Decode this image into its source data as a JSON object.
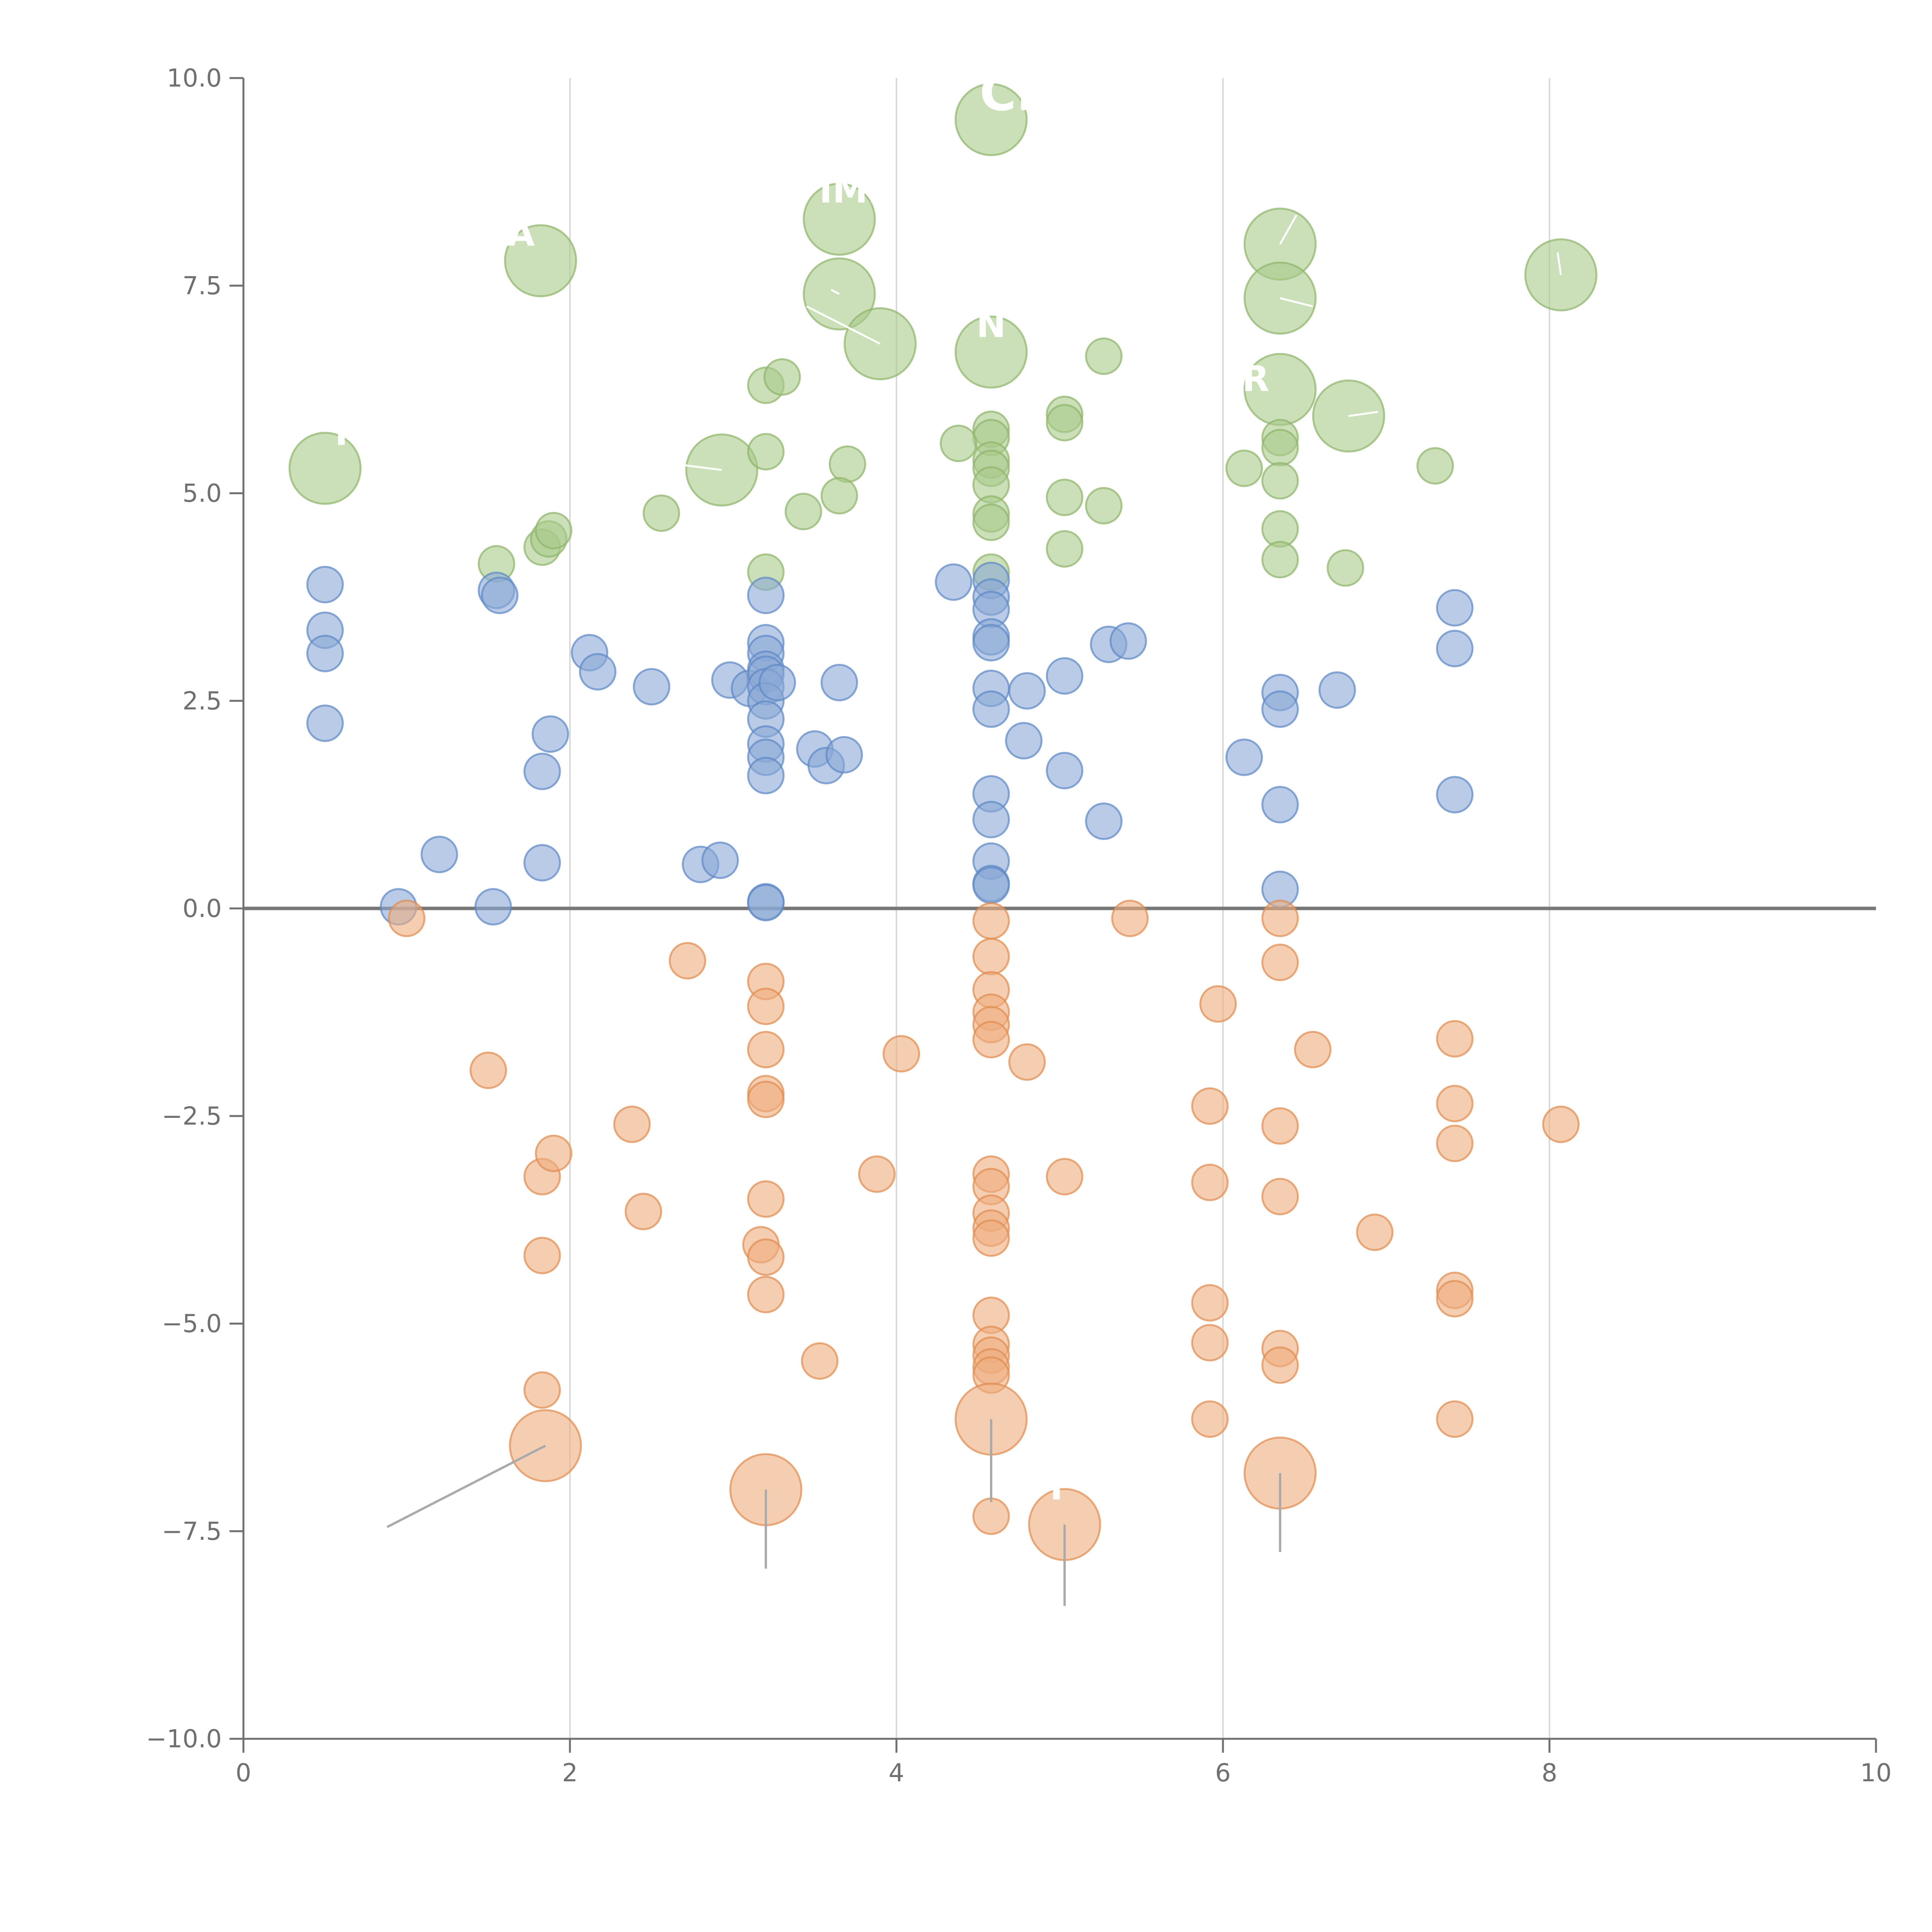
{
  "chart_data": {
    "type": "scatter",
    "title": "",
    "xlabel": "",
    "ylabel": "",
    "xlim": [
      0,
      10
    ],
    "ylim": [
      -10,
      10
    ],
    "x_ticks": [
      0,
      2,
      4,
      6,
      8,
      10
    ],
    "x_tick_labels": [
      "0",
      "2",
      "4",
      "6",
      "8",
      "10"
    ],
    "y_ticks": [
      -10,
      -7.5,
      -5,
      -2.5,
      0,
      2.5,
      5,
      7.5,
      10
    ],
    "y_tick_labels": [
      "−10.0",
      "−7.5",
      "−5.0",
      "−2.5",
      "0.0",
      "2.5",
      "5.0",
      "7.5",
      "10.0"
    ],
    "vertical_gridlines_at": [
      2,
      4,
      6,
      8
    ],
    "baseline_y": 0,
    "colors": {
      "green": "#a9c98a",
      "green_stroke": "#8fb46a",
      "blue": "#8ba8d6",
      "blue_stroke": "#5d87c4",
      "orange": "#eeae7e",
      "orange_stroke": "#df8c4e",
      "axis": "#707070",
      "grid": "#d9d9d9",
      "baseline": "#777777",
      "leader": "#aaaaaa"
    },
    "series": [
      {
        "name": "green",
        "points": [
          [
            0.5,
            5.3,
            2
          ],
          [
            1.82,
            7.8,
            2
          ],
          [
            3.65,
            8.3,
            2
          ],
          [
            4.58,
            9.5,
            2
          ],
          [
            3.65,
            7.4,
            2
          ],
          [
            3.9,
            6.8,
            2
          ],
          [
            4.58,
            6.7,
            2
          ],
          [
            2.93,
            5.28,
            2
          ],
          [
            6.35,
            8.0,
            2
          ],
          [
            6.35,
            7.35,
            2
          ],
          [
            6.35,
            6.25,
            2
          ],
          [
            6.77,
            5.93,
            2
          ],
          [
            8.07,
            7.63,
            2
          ],
          [
            3.2,
            6.3,
            1
          ],
          [
            3.3,
            6.4,
            1
          ],
          [
            5.27,
            6.65,
            1
          ],
          [
            5.03,
            5.95,
            1
          ],
          [
            5.03,
            5.85,
            1
          ],
          [
            4.58,
            5.77,
            1
          ],
          [
            4.58,
            5.67,
            1
          ],
          [
            4.38,
            5.6,
            1
          ],
          [
            4.58,
            5.4,
            1
          ],
          [
            4.58,
            5.3,
            1
          ],
          [
            4.58,
            5.1,
            1
          ],
          [
            4.58,
            4.75,
            1
          ],
          [
            4.58,
            4.65,
            1
          ],
          [
            4.58,
            4.05,
            1
          ],
          [
            3.2,
            5.5,
            1
          ],
          [
            3.7,
            5.35,
            1
          ],
          [
            3.65,
            4.97,
            1
          ],
          [
            3.43,
            4.78,
            1
          ],
          [
            2.56,
            4.76,
            1
          ],
          [
            1.55,
            4.15,
            1
          ],
          [
            1.83,
            4.35,
            1
          ],
          [
            1.87,
            4.45,
            1
          ],
          [
            1.9,
            4.55,
            1
          ],
          [
            3.2,
            4.05,
            1
          ],
          [
            5.03,
            4.95,
            1
          ],
          [
            5.27,
            4.85,
            1
          ],
          [
            5.03,
            4.33,
            1
          ],
          [
            6.13,
            5.3,
            1
          ],
          [
            6.35,
            5.67,
            1
          ],
          [
            6.35,
            5.55,
            1
          ],
          [
            6.35,
            5.15,
            1
          ],
          [
            6.35,
            4.57,
            1
          ],
          [
            6.35,
            4.2,
            1
          ],
          [
            6.75,
            4.1,
            1
          ],
          [
            7.3,
            5.33,
            1
          ]
        ]
      },
      {
        "name": "blue",
        "points": [
          [
            0.5,
            3.9,
            1
          ],
          [
            0.5,
            3.35,
            1
          ],
          [
            0.5,
            3.07,
            1
          ],
          [
            0.5,
            2.23,
            1
          ],
          [
            1.55,
            3.83,
            1
          ],
          [
            1.57,
            3.77,
            1
          ],
          [
            2.12,
            3.08,
            1
          ],
          [
            2.17,
            2.85,
            1
          ],
          [
            2.5,
            2.67,
            1
          ],
          [
            1.88,
            2.1,
            1
          ],
          [
            1.83,
            1.65,
            1
          ],
          [
            1.2,
            0.65,
            1
          ],
          [
            1.83,
            0.55,
            1
          ],
          [
            0.95,
            0.02,
            1
          ],
          [
            1.53,
            0.02,
            1
          ],
          [
            2.8,
            0.53,
            1
          ],
          [
            2.92,
            0.58,
            1
          ],
          [
            2.98,
            2.75,
            1
          ],
          [
            3.1,
            2.65,
            1
          ],
          [
            3.2,
            3.77,
            1
          ],
          [
            3.2,
            3.2,
            1
          ],
          [
            3.2,
            3.07,
            1
          ],
          [
            3.2,
            2.88,
            1
          ],
          [
            3.2,
            2.82,
            1
          ],
          [
            3.2,
            2.67,
            1
          ],
          [
            3.2,
            2.5,
            1
          ],
          [
            3.2,
            2.28,
            1
          ],
          [
            3.2,
            1.98,
            1
          ],
          [
            3.2,
            1.82,
            1
          ],
          [
            3.2,
            1.6,
            1
          ],
          [
            3.27,
            2.72,
            1
          ],
          [
            3.2,
            0.08,
            1
          ],
          [
            3.2,
            0.07,
            1
          ],
          [
            3.5,
            1.92,
            1
          ],
          [
            3.57,
            1.72,
            1
          ],
          [
            3.68,
            1.85,
            1
          ],
          [
            3.65,
            2.72,
            1
          ],
          [
            4.35,
            3.93,
            1
          ],
          [
            4.58,
            3.95,
            1
          ],
          [
            4.58,
            3.75,
            1
          ],
          [
            4.58,
            3.6,
            1
          ],
          [
            4.58,
            3.27,
            1
          ],
          [
            4.58,
            3.2,
            1
          ],
          [
            4.58,
            2.65,
            1
          ],
          [
            4.58,
            2.4,
            1
          ],
          [
            4.8,
            2.62,
            1
          ],
          [
            4.78,
            2.02,
            1
          ],
          [
            4.58,
            1.38,
            1
          ],
          [
            4.58,
            1.07,
            1
          ],
          [
            4.58,
            0.57,
            1
          ],
          [
            4.58,
            0.3,
            1
          ],
          [
            4.58,
            0.28,
            1
          ],
          [
            5.03,
            2.8,
            1
          ],
          [
            5.03,
            1.66,
            1
          ],
          [
            5.27,
            1.05,
            1
          ],
          [
            5.3,
            3.18,
            1
          ],
          [
            5.42,
            3.22,
            1
          ],
          [
            6.13,
            1.82,
            1
          ],
          [
            6.35,
            2.6,
            1
          ],
          [
            6.35,
            2.4,
            1
          ],
          [
            6.35,
            1.25,
            1
          ],
          [
            6.35,
            0.23,
            1
          ],
          [
            6.7,
            2.63,
            1
          ],
          [
            7.42,
            3.62,
            1
          ],
          [
            7.42,
            3.13,
            1
          ],
          [
            7.42,
            1.37,
            1
          ]
        ]
      },
      {
        "name": "orange",
        "points": [
          [
            1.0,
            -0.12,
            1
          ],
          [
            1.5,
            -1.95,
            1
          ],
          [
            1.83,
            -3.23,
            1
          ],
          [
            1.9,
            -2.95,
            1
          ],
          [
            1.83,
            -4.18,
            1
          ],
          [
            1.83,
            -5.8,
            1
          ],
          [
            2.38,
            -2.6,
            1
          ],
          [
            2.45,
            -3.65,
            1
          ],
          [
            2.72,
            -0.63,
            1
          ],
          [
            3.2,
            -0.88,
            1
          ],
          [
            3.2,
            -1.18,
            1
          ],
          [
            3.2,
            -1.7,
            1
          ],
          [
            3.2,
            -2.23,
            1
          ],
          [
            3.2,
            -2.3,
            1
          ],
          [
            3.2,
            -3.5,
            1
          ],
          [
            3.17,
            -4.05,
            1
          ],
          [
            3.2,
            -4.2,
            1
          ],
          [
            3.2,
            -4.65,
            1
          ],
          [
            3.53,
            -5.45,
            1
          ],
          [
            3.88,
            -3.2,
            1
          ],
          [
            4.03,
            -1.75,
            1
          ],
          [
            4.58,
            -0.15,
            1
          ],
          [
            4.58,
            -0.58,
            1
          ],
          [
            4.58,
            -0.98,
            1
          ],
          [
            4.58,
            -1.25,
            1
          ],
          [
            4.58,
            -1.4,
            1
          ],
          [
            4.58,
            -1.58,
            1
          ],
          [
            4.58,
            -3.2,
            1
          ],
          [
            4.58,
            -3.35,
            1
          ],
          [
            4.58,
            -3.67,
            1
          ],
          [
            4.58,
            -3.85,
            1
          ],
          [
            4.58,
            -3.97,
            1
          ],
          [
            4.58,
            -4.9,
            1
          ],
          [
            4.58,
            -5.25,
            1
          ],
          [
            4.58,
            -5.38,
            1
          ],
          [
            4.58,
            -5.52,
            1
          ],
          [
            4.58,
            -5.62,
            1
          ],
          [
            4.58,
            -7.32,
            1
          ],
          [
            4.8,
            -1.85,
            1
          ],
          [
            5.03,
            -3.23,
            1
          ],
          [
            5.43,
            -0.12,
            1
          ],
          [
            5.97,
            -1.15,
            1
          ],
          [
            5.92,
            -2.38,
            1
          ],
          [
            5.92,
            -3.3,
            1
          ],
          [
            5.92,
            -4.75,
            1
          ],
          [
            5.92,
            -5.23,
            1
          ],
          [
            5.92,
            -6.15,
            1
          ],
          [
            6.35,
            -0.12,
            1
          ],
          [
            6.35,
            -0.65,
            1
          ],
          [
            6.35,
            -2.62,
            1
          ],
          [
            6.35,
            -3.47,
            1
          ],
          [
            6.35,
            -5.3,
            1
          ],
          [
            6.35,
            -5.5,
            1
          ],
          [
            6.55,
            -1.7,
            1
          ],
          [
            6.93,
            -3.9,
            1
          ],
          [
            7.42,
            -1.57,
            1
          ],
          [
            7.42,
            -2.35,
            1
          ],
          [
            7.42,
            -2.83,
            1
          ],
          [
            7.42,
            -4.6,
            1
          ],
          [
            7.42,
            -4.7,
            1
          ],
          [
            7.42,
            -6.15,
            1
          ],
          [
            8.07,
            -2.6,
            1
          ],
          [
            1.85,
            -6.47,
            2
          ],
          [
            3.2,
            -7.0,
            2
          ],
          [
            4.58,
            -6.15,
            2
          ],
          [
            5.03,
            -7.42,
            2
          ],
          [
            6.35,
            -6.8,
            2
          ]
        ]
      }
    ],
    "annotations": [
      {
        "text": "CL",
        "at": [
          4.58,
          9.5
        ],
        "text_at": [
          4.72,
          9.78
        ],
        "size": 3
      },
      {
        "text": "IME",
        "at": [
          3.65,
          8.3
        ],
        "text_at": [
          3.75,
          8.62
        ],
        "size": 2
      },
      {
        "text": "A",
        "at": [
          1.82,
          7.8
        ],
        "text_at": [
          1.7,
          8.1
        ],
        "size": 2
      },
      {
        "text": "N",
        "at": [
          4.58,
          6.7
        ],
        "text_at": [
          4.58,
          7.0
        ],
        "size": 2
      },
      {
        "text": "R",
        "at": [
          6.35,
          6.25
        ],
        "text_at": [
          6.2,
          6.35
        ],
        "size": 2
      },
      {
        "text": "I",
        "at": [
          0.5,
          5.3
        ],
        "text_at": [
          0.6,
          5.7
        ],
        "size": 2
      },
      {
        "text": "I",
        "at": [
          5.03,
          -7.42
        ],
        "text_at": [
          4.98,
          -7.0
        ],
        "size": 2
      }
    ],
    "leader_lines": [
      {
        "color": "white",
        "from": [
          3.65,
          7.4
        ],
        "to": [
          3.6,
          7.45
        ]
      },
      {
        "color": "white",
        "from": [
          3.9,
          6.8
        ],
        "to": [
          3.45,
          7.25
        ]
      },
      {
        "color": "white",
        "from": [
          2.93,
          5.28
        ],
        "to": [
          2.65,
          5.35
        ]
      },
      {
        "color": "white",
        "from": [
          6.35,
          8.0
        ],
        "to": [
          6.45,
          8.35
        ]
      },
      {
        "color": "white",
        "from": [
          6.35,
          7.35
        ],
        "to": [
          6.55,
          7.25
        ]
      },
      {
        "color": "white",
        "from": [
          6.77,
          5.93
        ],
        "to": [
          6.95,
          5.98
        ]
      },
      {
        "color": "white",
        "from": [
          8.07,
          7.63
        ],
        "to": [
          8.05,
          7.9
        ]
      },
      {
        "color": "grey",
        "from": [
          1.85,
          -6.47
        ],
        "to": [
          0.88,
          -7.45
        ]
      },
      {
        "color": "grey",
        "from": [
          3.2,
          -7.0
        ],
        "to": [
          3.2,
          -7.95
        ]
      },
      {
        "color": "grey",
        "from": [
          4.58,
          -6.15
        ],
        "to": [
          4.58,
          -7.15
        ]
      },
      {
        "color": "grey",
        "from": [
          5.03,
          -7.42
        ],
        "to": [
          5.03,
          -8.4
        ]
      },
      {
        "color": "grey",
        "from": [
          6.35,
          -6.8
        ],
        "to": [
          6.35,
          -7.75
        ]
      }
    ]
  }
}
